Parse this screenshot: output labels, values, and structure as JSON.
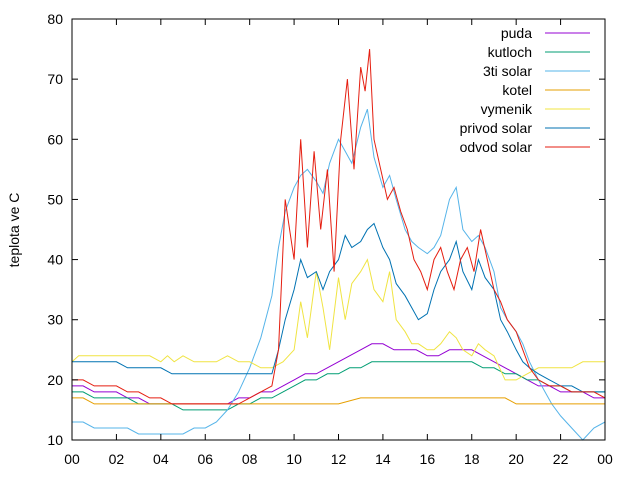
{
  "chart_data": {
    "type": "line",
    "ylabel": "teplota ve C",
    "xlabel": "",
    "title": "",
    "xlim": [
      0,
      24
    ],
    "ylim": [
      10,
      80
    ],
    "x_ticks": [
      "00",
      "02",
      "04",
      "06",
      "08",
      "10",
      "12",
      "14",
      "16",
      "18",
      "20",
      "22",
      "00"
    ],
    "x_tick_values": [
      0,
      2,
      4,
      6,
      8,
      10,
      12,
      14,
      16,
      18,
      20,
      22,
      24
    ],
    "y_ticks": [
      10,
      20,
      30,
      40,
      50,
      60,
      70,
      80
    ],
    "grid": false,
    "legend_position": "top-right",
    "series": [
      {
        "name": "puda",
        "color": "#9400d3",
        "x": [
          0,
          0.5,
          1,
          1.5,
          2,
          2.5,
          3,
          3.5,
          4,
          4.5,
          5,
          5.5,
          6,
          6.5,
          7,
          7.5,
          8,
          8.5,
          9,
          9.5,
          10,
          10.5,
          11,
          11.5,
          12,
          12.5,
          13,
          13.5,
          14,
          14.5,
          15,
          15.5,
          16,
          16.5,
          17,
          17.5,
          18,
          18.5,
          19,
          19.5,
          20,
          20.5,
          21,
          21.5,
          22,
          22.5,
          23,
          23.5,
          24
        ],
        "y": [
          19,
          19,
          18,
          18,
          18,
          17,
          17,
          16,
          16,
          16,
          16,
          16,
          16,
          16,
          16,
          17,
          17,
          18,
          18,
          19,
          20,
          21,
          21,
          22,
          23,
          24,
          25,
          26,
          26,
          25,
          25,
          25,
          24,
          24,
          25,
          25,
          25,
          24,
          23,
          22,
          21,
          20,
          19,
          19,
          18,
          18,
          18,
          17,
          17
        ]
      },
      {
        "name": "kutloch",
        "color": "#009e73",
        "x": [
          0,
          0.5,
          1,
          1.5,
          2,
          2.5,
          3,
          3.5,
          4,
          4.5,
          5,
          5.5,
          6,
          6.5,
          7,
          7.5,
          8,
          8.5,
          9,
          9.5,
          10,
          10.5,
          11,
          11.5,
          12,
          12.5,
          13,
          13.5,
          14,
          14.5,
          15,
          15.5,
          16,
          16.5,
          17,
          17.5,
          18,
          18.5,
          19,
          19.5,
          20,
          20.5,
          21,
          21.5,
          22,
          22.5,
          23,
          23.5,
          24
        ],
        "y": [
          18,
          18,
          17,
          17,
          17,
          17,
          16,
          16,
          16,
          16,
          15,
          15,
          15,
          15,
          15,
          16,
          16,
          17,
          17,
          18,
          19,
          20,
          20,
          21,
          21,
          22,
          22,
          23,
          23,
          23,
          23,
          23,
          23,
          23,
          23,
          23,
          23,
          22,
          22,
          21,
          21,
          20,
          20,
          19,
          19,
          18,
          18,
          18,
          18
        ]
      },
      {
        "name": "3ti solar",
        "color": "#56b4e9",
        "x": [
          0,
          0.5,
          1,
          1.5,
          2,
          2.5,
          3,
          3.5,
          4,
          4.5,
          5,
          5.5,
          6,
          6.5,
          7,
          7.5,
          8,
          8.5,
          9,
          9.3,
          9.6,
          10,
          10.3,
          10.6,
          11,
          11.3,
          11.6,
          12,
          12.3,
          12.6,
          13,
          13.3,
          13.6,
          14,
          14.3,
          14.6,
          15,
          15.3,
          15.6,
          16,
          16.3,
          16.6,
          17,
          17.3,
          17.6,
          18,
          18.3,
          18.6,
          19,
          19.3,
          19.6,
          20,
          20.3,
          20.6,
          21,
          21.3,
          21.6,
          22,
          22.5,
          23,
          23.5,
          24
        ],
        "y": [
          13,
          13,
          12,
          12,
          12,
          12,
          11,
          11,
          11,
          11,
          11,
          12,
          12,
          13,
          15,
          18,
          22,
          27,
          34,
          42,
          48,
          52,
          54,
          55,
          53,
          51,
          56,
          60,
          58,
          56,
          62,
          65,
          57,
          52,
          54,
          50,
          45,
          43,
          42,
          41,
          42,
          44,
          50,
          52,
          45,
          43,
          44,
          42,
          38,
          32,
          30,
          28,
          26,
          23,
          20,
          18,
          16,
          14,
          12,
          10,
          12,
          13
        ]
      },
      {
        "name": "kotel",
        "color": "#e69f00",
        "x": [
          0,
          0.5,
          1,
          2,
          3,
          4,
          5,
          6,
          7,
          8,
          9,
          10,
          11,
          12,
          13,
          14,
          15,
          16,
          17,
          18,
          19,
          19.5,
          20,
          21,
          22,
          23,
          24
        ],
        "y": [
          17,
          17,
          16,
          16,
          16,
          16,
          16,
          16,
          16,
          16,
          16,
          16,
          16,
          16,
          17,
          17,
          17,
          17,
          17,
          17,
          17,
          17,
          16,
          16,
          16,
          16,
          16
        ]
      },
      {
        "name": "vymenik",
        "color": "#f0e442",
        "x": [
          0,
          0.3,
          0.6,
          1,
          1.5,
          2,
          2.5,
          3,
          3.5,
          4,
          4.3,
          4.6,
          5,
          5.5,
          6,
          6.5,
          7,
          7.5,
          8,
          8.5,
          9,
          9.5,
          10,
          10.3,
          10.6,
          11,
          11.3,
          11.6,
          12,
          12.3,
          12.6,
          13,
          13.3,
          13.6,
          14,
          14.3,
          14.6,
          15,
          15.3,
          15.6,
          16,
          16.3,
          16.6,
          17,
          17.3,
          17.6,
          18,
          18.3,
          18.6,
          19,
          19.5,
          20,
          20.5,
          21,
          21.5,
          22,
          22.5,
          23,
          23.5,
          24
        ],
        "y": [
          23,
          24,
          24,
          24,
          24,
          24,
          24,
          24,
          24,
          23,
          24,
          23,
          24,
          23,
          23,
          23,
          24,
          23,
          23,
          22,
          22,
          23,
          25,
          33,
          27,
          38,
          32,
          25,
          37,
          30,
          36,
          38,
          40,
          35,
          33,
          38,
          30,
          28,
          26,
          26,
          25,
          25,
          26,
          28,
          27,
          25,
          24,
          26,
          25,
          24,
          20,
          20,
          21,
          22,
          22,
          22,
          22,
          23,
          23,
          23
        ]
      },
      {
        "name": "privod solar",
        "color": "#0072b2",
        "x": [
          0,
          0.5,
          1,
          1.5,
          2,
          2.5,
          3,
          3.5,
          4,
          4.5,
          5,
          5.5,
          6,
          6.5,
          7,
          7.5,
          8,
          8.5,
          9,
          9.3,
          9.6,
          10,
          10.3,
          10.6,
          11,
          11.3,
          11.6,
          12,
          12.3,
          12.6,
          13,
          13.3,
          13.6,
          14,
          14.3,
          14.6,
          15,
          15.3,
          15.6,
          16,
          16.3,
          16.6,
          17,
          17.3,
          17.6,
          18,
          18.3,
          18.6,
          19,
          19.3,
          19.6,
          20,
          20.3,
          20.6,
          21,
          21.5,
          22,
          22.5,
          23,
          23.5,
          24
        ],
        "y": [
          23,
          23,
          23,
          23,
          23,
          22,
          22,
          22,
          22,
          21,
          21,
          21,
          21,
          21,
          21,
          21,
          21,
          21,
          21,
          25,
          30,
          35,
          40,
          37,
          38,
          35,
          38,
          40,
          44,
          42,
          43,
          45,
          46,
          42,
          40,
          36,
          34,
          32,
          30,
          31,
          35,
          38,
          40,
          43,
          38,
          35,
          40,
          37,
          35,
          30,
          28,
          25,
          23,
          22,
          21,
          20,
          19,
          19,
          18,
          18,
          18
        ]
      },
      {
        "name": "odvod solar",
        "color": "#e51e10",
        "x": [
          0,
          0.5,
          1,
          1.5,
          2,
          2.5,
          3,
          3.5,
          4,
          4.5,
          5,
          5.5,
          6,
          6.5,
          7,
          7.5,
          8,
          8.5,
          9,
          9.3,
          9.6,
          9.8,
          10,
          10.3,
          10.6,
          10.9,
          11.2,
          11.5,
          11.8,
          12.1,
          12.4,
          12.7,
          13,
          13.2,
          13.4,
          13.6,
          13.9,
          14.2,
          14.5,
          14.8,
          15.1,
          15.4,
          15.7,
          16,
          16.3,
          16.6,
          16.9,
          17.2,
          17.5,
          17.8,
          18.1,
          18.4,
          18.7,
          19,
          19.3,
          19.6,
          20,
          20.3,
          20.6,
          21,
          21.5,
          22,
          22.5,
          23,
          23.5,
          24
        ],
        "y": [
          20,
          20,
          19,
          19,
          19,
          18,
          18,
          17,
          17,
          16,
          16,
          16,
          16,
          16,
          16,
          16,
          17,
          18,
          19,
          25,
          50,
          45,
          40,
          60,
          42,
          58,
          45,
          55,
          38,
          60,
          70,
          55,
          72,
          68,
          75,
          60,
          55,
          50,
          52,
          48,
          45,
          40,
          38,
          35,
          40,
          42,
          38,
          35,
          40,
          42,
          38,
          45,
          40,
          35,
          33,
          30,
          28,
          25,
          22,
          20,
          19,
          19,
          18,
          18,
          18,
          17
        ]
      }
    ]
  }
}
